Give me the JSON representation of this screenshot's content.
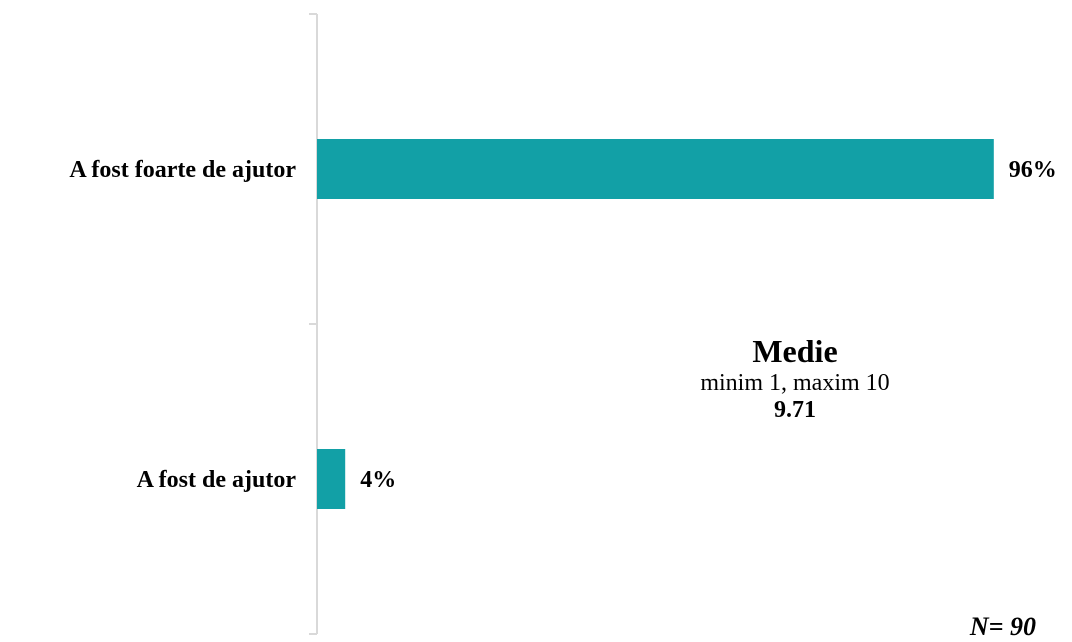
{
  "chart_data": {
    "type": "bar",
    "orientation": "horizontal",
    "categories": [
      "A fost foarte de ajutor",
      "A fost de ajutor"
    ],
    "values": [
      96,
      4
    ],
    "data_labels": [
      "96%",
      "4%"
    ],
    "xlim": [
      0,
      100
    ],
    "grid": false,
    "bar_color": "#12a0a6",
    "axis_color": "#d9d9d9"
  },
  "annotation": {
    "title": "Medie",
    "subtitle": "minim 1, maxim 10",
    "value": "9.71"
  },
  "sample": "N= 90"
}
